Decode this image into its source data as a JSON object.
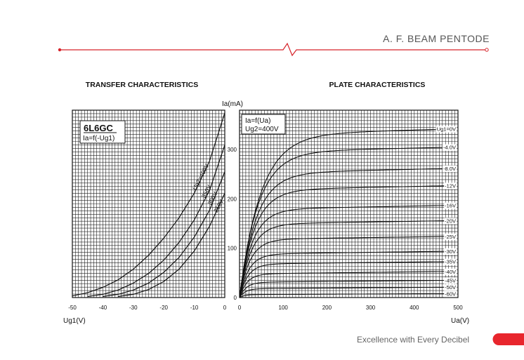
{
  "header": {
    "title": "A. F. BEAM PENTODE",
    "accent_color": "#d6232a"
  },
  "footer": {
    "slogan": "Excellence with Every Decibel",
    "tab_color": "#e8262d"
  },
  "chart_data": [
    {
      "type": "line",
      "title": "TRANSFER CHARACTERISTICS",
      "model": "6L6GC",
      "function_label": "Ia=f(-Ug1)",
      "xlabel": "Ug1(V)",
      "ylabel": "Ia(mA)",
      "xlim": [
        -50,
        0
      ],
      "ylim": [
        0,
        350
      ],
      "x_ticks": [
        -50,
        -40,
        -30,
        -20,
        -10,
        0
      ],
      "grid": true,
      "series": [
        {
          "name": "Ug2=400V",
          "x": [
            -50,
            -45,
            -40,
            -35,
            -30,
            -25,
            -20,
            -15,
            -10,
            -5,
            0
          ],
          "y": [
            3,
            9,
            19,
            33,
            53,
            79,
            111,
            149,
            195,
            255,
            345
          ]
        },
        {
          "name": "350V",
          "x": [
            -45,
            -40,
            -35,
            -30,
            -25,
            -20,
            -15,
            -10,
            -5,
            0
          ],
          "y": [
            2,
            6,
            14,
            27,
            45,
            70,
            103,
            145,
            200,
            285
          ]
        },
        {
          "name": "300V",
          "x": [
            -40,
            -35,
            -30,
            -25,
            -20,
            -15,
            -10,
            -5,
            0
          ],
          "y": [
            2,
            6,
            14,
            27,
            47,
            75,
            113,
            163,
            235
          ]
        },
        {
          "name": "250V",
          "x": [
            -35,
            -30,
            -25,
            -20,
            -15,
            -10,
            -5,
            0
          ],
          "y": [
            2,
            6,
            15,
            30,
            53,
            87,
            133,
            195
          ]
        }
      ]
    },
    {
      "type": "line",
      "title": "PLATE CHARACTERISTICS",
      "function_label": "Ia=f(Ua)",
      "condition_label": "Ug2=400V",
      "xlabel": "Ua(V)",
      "ylabel": "Ia(mA)",
      "xlim": [
        0,
        500
      ],
      "ylim": [
        0,
        380
      ],
      "x_ticks": [
        0,
        100,
        200,
        300,
        400,
        500
      ],
      "y_ticks": [
        0,
        100,
        200,
        300
      ],
      "grid": true,
      "series": [
        {
          "name": "Ug1=0V",
          "y_sat": 330,
          "y_end": 342,
          "knee": 48
        },
        {
          "name": "-4.0V",
          "y_sat": 295,
          "y_end": 305,
          "knee": 42
        },
        {
          "name": "-8.0V",
          "y_sat": 252,
          "y_end": 262,
          "knee": 38
        },
        {
          "name": "-12V",
          "y_sat": 218,
          "y_end": 227,
          "knee": 34
        },
        {
          "name": "-16V",
          "y_sat": 179,
          "y_end": 187,
          "knee": 30
        },
        {
          "name": "-20V",
          "y_sat": 149,
          "y_end": 156,
          "knee": 27
        },
        {
          "name": "-25V",
          "y_sat": 118,
          "y_end": 124,
          "knee": 24
        },
        {
          "name": "-30V",
          "y_sat": 88,
          "y_end": 94,
          "knee": 21
        },
        {
          "name": "-35V",
          "y_sat": 68,
          "y_end": 73,
          "knee": 19
        },
        {
          "name": "-40V",
          "y_sat": 48,
          "y_end": 53,
          "knee": 17
        },
        {
          "name": "-45V",
          "y_sat": 31,
          "y_end": 35,
          "knee": 15
        },
        {
          "name": "-50V",
          "y_sat": 18,
          "y_end": 21,
          "knee": 13
        },
        {
          "name": "-60V",
          "y_sat": 6,
          "y_end": 8,
          "knee": 11
        }
      ]
    }
  ]
}
